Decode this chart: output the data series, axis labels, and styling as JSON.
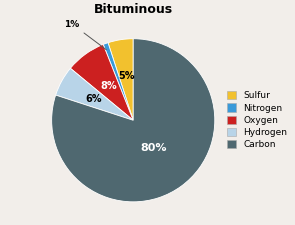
{
  "title": "Bituminous",
  "labels": [
    "Sulfur",
    "Nitrogen",
    "Oxygen",
    "Hydrogen",
    "Carbon"
  ],
  "values": [
    5,
    1,
    8,
    6,
    80
  ],
  "colors": [
    "#F2C12E",
    "#3A9AD9",
    "#CC2020",
    "#B8D4E8",
    "#4F6870"
  ],
  "legend_labels": [
    "Sulfur",
    "Nitrogen",
    "Oxygen",
    "Hydrogen",
    "Carbon"
  ],
  "legend_colors": [
    "#F2C12E",
    "#3A9AD9",
    "#CC2020",
    "#B8D4E8",
    "#4F6870"
  ],
  "startangle": 90,
  "background_color": "#f2eeea"
}
